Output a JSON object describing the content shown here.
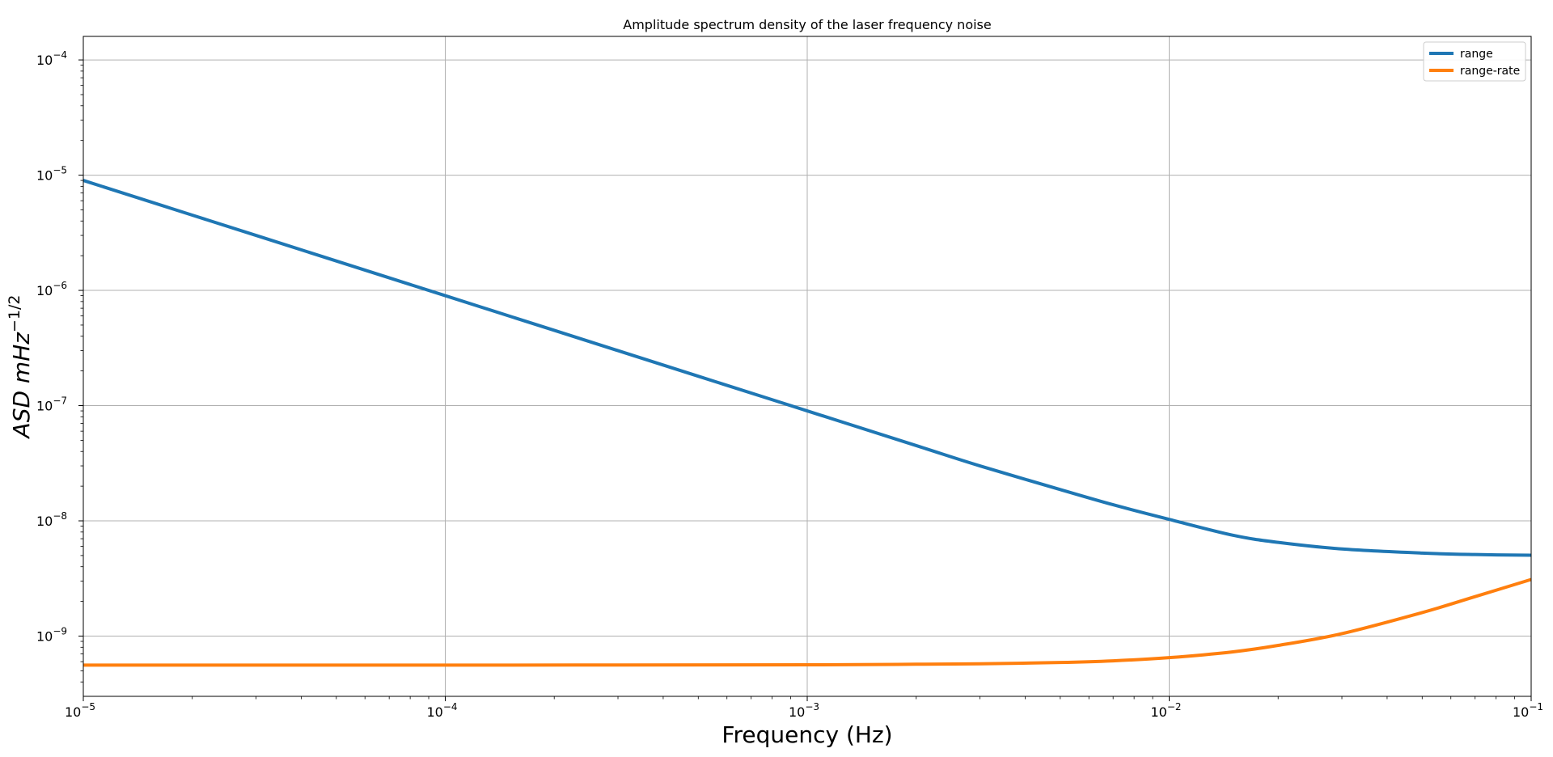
{
  "chart_data": {
    "type": "line",
    "title": "Amplitude spectrum density of the laser frequency noise",
    "xlabel": "Frequency (Hz)",
    "ylabel": {
      "main": "ASD   mHz",
      "sup": "−1/2"
    },
    "x_scale": "log",
    "y_scale": "log",
    "xlim": [
      1e-05,
      0.1
    ],
    "ylim": [
      3e-10,
      0.00016
    ],
    "grid": true,
    "legend_position": "top-right",
    "x_ticks": [
      {
        "value": 1e-05,
        "base": "10",
        "exp": "−5"
      },
      {
        "value": 0.0001,
        "base": "10",
        "exp": "−4"
      },
      {
        "value": 0.001,
        "base": "10",
        "exp": "−3"
      },
      {
        "value": 0.01,
        "base": "10",
        "exp": "−2"
      },
      {
        "value": 0.1,
        "base": "10",
        "exp": "−1"
      }
    ],
    "y_ticks": [
      {
        "value": 1e-09,
        "base": "10",
        "exp": "−9"
      },
      {
        "value": 1e-08,
        "base": "10",
        "exp": "−8"
      },
      {
        "value": 1e-07,
        "base": "10",
        "exp": "−7"
      },
      {
        "value": 1e-06,
        "base": "10",
        "exp": "−6"
      },
      {
        "value": 1e-05,
        "base": "10",
        "exp": "−5"
      },
      {
        "value": 0.0001,
        "base": "10",
        "exp": "−4"
      }
    ],
    "series": [
      {
        "name": "range",
        "color": "#1f77b4",
        "x": [
          1e-05,
          2e-05,
          5e-05,
          0.0001,
          0.0002,
          0.0005,
          0.001,
          0.002,
          0.003,
          0.005,
          0.007,
          0.01,
          0.015,
          0.02,
          0.03,
          0.05,
          0.07,
          0.1
        ],
        "y": [
          9e-06,
          4.5e-06,
          1.8e-06,
          9e-07,
          4.5e-07,
          1.8e-07,
          9e-08,
          4.5e-08,
          3e-08,
          1.87e-08,
          1.38e-08,
          1.03e-08,
          7.5e-09,
          6.5e-09,
          5.7e-09,
          5.25e-09,
          5.1e-09,
          5.03e-09
        ]
      },
      {
        "name": "range-rate",
        "color": "#ff7f0e",
        "x": [
          1e-05,
          0.0001,
          0.001,
          0.002,
          0.003,
          0.005,
          0.007,
          0.01,
          0.015,
          0.02,
          0.03,
          0.05,
          0.07,
          0.1
        ],
        "y": [
          5.6e-10,
          5.6e-10,
          5.63e-10,
          5.7e-10,
          5.75e-10,
          5.9e-10,
          6.1e-10,
          6.5e-10,
          7.3e-10,
          8.3e-10,
          1.05e-09,
          1.6e-09,
          2.2e-09,
          3.1e-09
        ]
      }
    ]
  }
}
